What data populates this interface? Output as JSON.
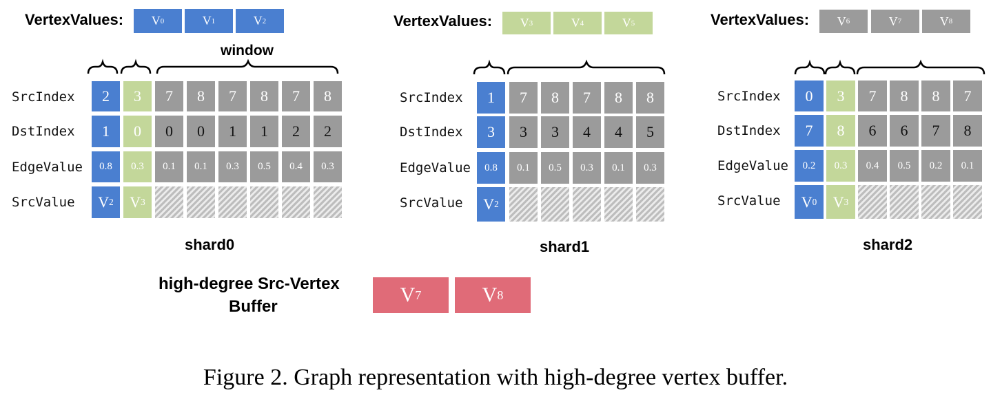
{
  "vertex_values_label": "VertexValues:",
  "window_label": "window",
  "row_labels": [
    "SrcIndex",
    "DstIndex",
    "EdgeValue",
    "SrcValue"
  ],
  "shards": [
    {
      "name": "shard0",
      "vertex_values": [
        "V0",
        "V1",
        "V2"
      ],
      "src_index": [
        "2",
        "3",
        "7",
        "8",
        "7",
        "8",
        "7",
        "8"
      ],
      "dst_index": [
        "1",
        "0",
        "0",
        "0",
        "1",
        "1",
        "2",
        "2"
      ],
      "edge_value": [
        "0.8",
        "0.3",
        "0.1",
        "0.1",
        "0.3",
        "0.5",
        "0.4",
        "0.3"
      ],
      "src_value": [
        "V2",
        "V3"
      ]
    },
    {
      "name": "shard1",
      "vertex_values": [
        "V3",
        "V4",
        "V5"
      ],
      "src_index": [
        "1",
        "7",
        "8",
        "7",
        "8",
        "8"
      ],
      "dst_index": [
        "3",
        "3",
        "3",
        "4",
        "4",
        "5"
      ],
      "edge_value": [
        "0.8",
        "0.1",
        "0.5",
        "0.3",
        "0.1",
        "0.3"
      ],
      "src_value": [
        "V2"
      ]
    },
    {
      "name": "shard2",
      "vertex_values": [
        "V6",
        "V7",
        "V8"
      ],
      "src_index": [
        "0",
        "3",
        "7",
        "8",
        "8",
        "7"
      ],
      "dst_index": [
        "7",
        "8",
        "6",
        "6",
        "7",
        "8"
      ],
      "edge_value": [
        "0.2",
        "0.3",
        "0.4",
        "0.5",
        "0.2",
        "0.1"
      ],
      "src_value": [
        "V0",
        "V3"
      ]
    }
  ],
  "buffer": {
    "label_line1": "high-degree Src-Vertex",
    "label_line2": "Buffer",
    "values": [
      "V7",
      "V8"
    ]
  },
  "caption": "Figure 2. Graph representation with high-degree vertex buffer.",
  "colors": {
    "blue": "#4a7fd0",
    "green": "#c3d79a",
    "gray": "#9b9b9b",
    "red": "#e06b78"
  }
}
